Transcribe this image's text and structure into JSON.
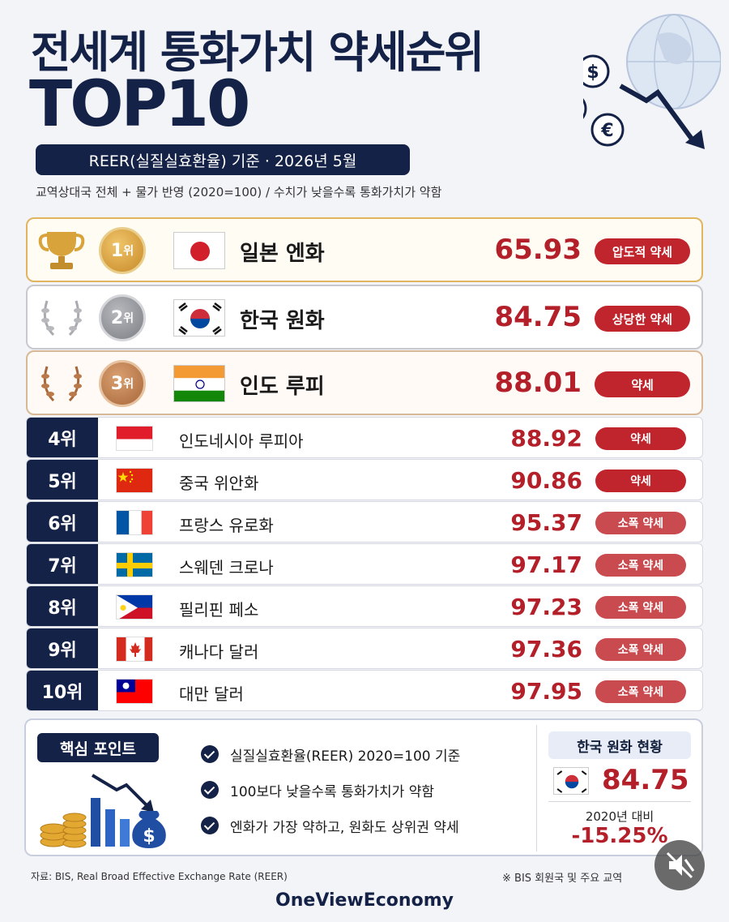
{
  "title": {
    "line1": "전세계 통화가치 약세순위",
    "line2": "TOP10"
  },
  "basis": "REER(실질실효환율) 기준 · 2026년 5월",
  "subnote": "교역상대국 전체 + 물가 반영 (2020=100) / 수치가 낮을수록 통화가치가 약함",
  "top3": [
    {
      "rank_num": "1",
      "rank_suffix": "위",
      "name": "일본 엔화",
      "value": "65.93",
      "badge": "압도적 약세"
    },
    {
      "rank_num": "2",
      "rank_suffix": "위",
      "name": "한국 원화",
      "value": "84.75",
      "badge": "상당한 약세"
    },
    {
      "rank_num": "3",
      "rank_suffix": "위",
      "name": "인도 루피",
      "value": "88.01",
      "badge": "약세"
    }
  ],
  "rows": [
    {
      "rank": "4위",
      "name": "인도네시아 루피아",
      "value": "88.92",
      "badge": "약세"
    },
    {
      "rank": "5위",
      "name": "중국 위안화",
      "value": "90.86",
      "badge": "약세"
    },
    {
      "rank": "6위",
      "name": "프랑스 유로화",
      "value": "95.37",
      "badge": "소폭 약세"
    },
    {
      "rank": "7위",
      "name": "스웨덴 크로나",
      "value": "97.17",
      "badge": "소폭 약세"
    },
    {
      "rank": "8위",
      "name": "필리핀 페소",
      "value": "97.23",
      "badge": "소폭 약세"
    },
    {
      "rank": "9위",
      "name": "캐나다 달러",
      "value": "97.36",
      "badge": "소폭 약세"
    },
    {
      "rank": "10위",
      "name": "대만 달러",
      "value": "97.95",
      "badge": "소폭 약세"
    }
  ],
  "key_points": {
    "tag": "핵심 포인트",
    "items": [
      "실질실효환율(REER) 2020=100 기준",
      "100보다 낮을수록 통화가치가 약함",
      "엔화가 가장 약하고, 원화도 상위권 약세"
    ]
  },
  "korea_status": {
    "tag": "한국 원화 현황",
    "value": "84.75",
    "compare": "2020년 대비",
    "change": "-15.25%"
  },
  "footer": {
    "source": "자료: BIS, Real Broad Effective Exchange Rate (REER)",
    "note": "※ BIS 회원국 및 주요 교역",
    "brand": "OneViewEconomy"
  },
  "icons": {
    "currency": [
      "$",
      "¥",
      "€"
    ],
    "money_bag": "$"
  },
  "colors": {
    "navy": "#152247",
    "red": "#c0242c",
    "value_red": "#b3202a"
  }
}
